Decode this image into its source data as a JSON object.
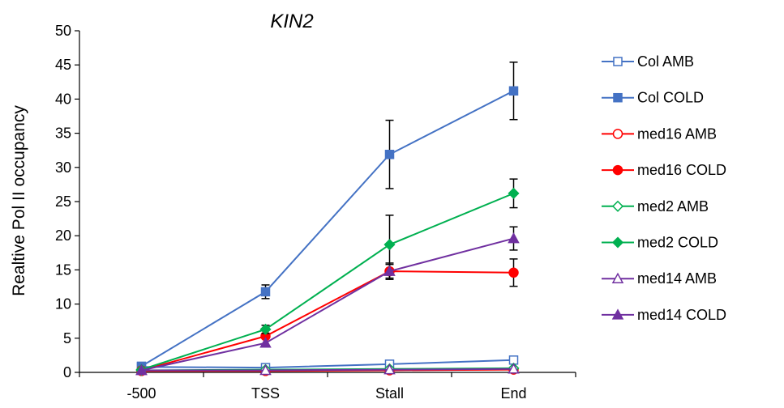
{
  "chart_data": {
    "type": "line",
    "title": "KIN2",
    "xlabel": "",
    "ylabel": "Realtive Pol II occupancy",
    "categories": [
      "-500",
      "TSS",
      "Stall",
      "End"
    ],
    "ylim": [
      0,
      50
    ],
    "yticks": [
      0,
      5,
      10,
      15,
      20,
      25,
      30,
      35,
      40,
      45,
      50
    ],
    "grid": false,
    "legend_position": "right",
    "series": [
      {
        "name": "Col AMB",
        "color": "#4472C4",
        "marker": "square",
        "filled": false,
        "values": [
          0.8,
          0.7,
          1.2,
          1.8
        ],
        "errors": [
          0,
          0,
          0,
          0
        ]
      },
      {
        "name": "Col COLD",
        "color": "#4472C4",
        "marker": "square",
        "filled": true,
        "values": [
          0.9,
          11.8,
          31.9,
          41.2
        ],
        "errors": [
          0,
          1.0,
          5.0,
          4.2
        ]
      },
      {
        "name": "med16 AMB",
        "color": "#FF0000",
        "marker": "circle",
        "filled": false,
        "values": [
          0.2,
          0.2,
          0.3,
          0.4
        ],
        "errors": [
          0,
          0,
          0,
          0
        ]
      },
      {
        "name": "med16 COLD",
        "color": "#FF0000",
        "marker": "circle",
        "filled": true,
        "values": [
          0.3,
          5.3,
          14.8,
          14.6
        ],
        "errors": [
          0,
          0,
          1.2,
          2.0
        ]
      },
      {
        "name": "med2 AMB",
        "color": "#00B050",
        "marker": "diamond",
        "filled": false,
        "values": [
          0.3,
          0.4,
          0.5,
          0.6
        ],
        "errors": [
          0,
          0,
          0,
          0
        ]
      },
      {
        "name": "med2 COLD",
        "color": "#00B050",
        "marker": "diamond",
        "filled": true,
        "values": [
          0.4,
          6.3,
          18.7,
          26.2
        ],
        "errors": [
          0,
          0.6,
          4.3,
          2.1
        ]
      },
      {
        "name": "med14 AMB",
        "color": "#7030A0",
        "marker": "triangle",
        "filled": false,
        "values": [
          0.3,
          0.3,
          0.4,
          0.5
        ],
        "errors": [
          0,
          0,
          0,
          0
        ]
      },
      {
        "name": "med14 COLD",
        "color": "#7030A0",
        "marker": "triangle",
        "filled": true,
        "values": [
          0.3,
          4.3,
          14.8,
          19.6
        ],
        "errors": [
          0,
          0,
          1.0,
          1.7
        ]
      }
    ]
  }
}
